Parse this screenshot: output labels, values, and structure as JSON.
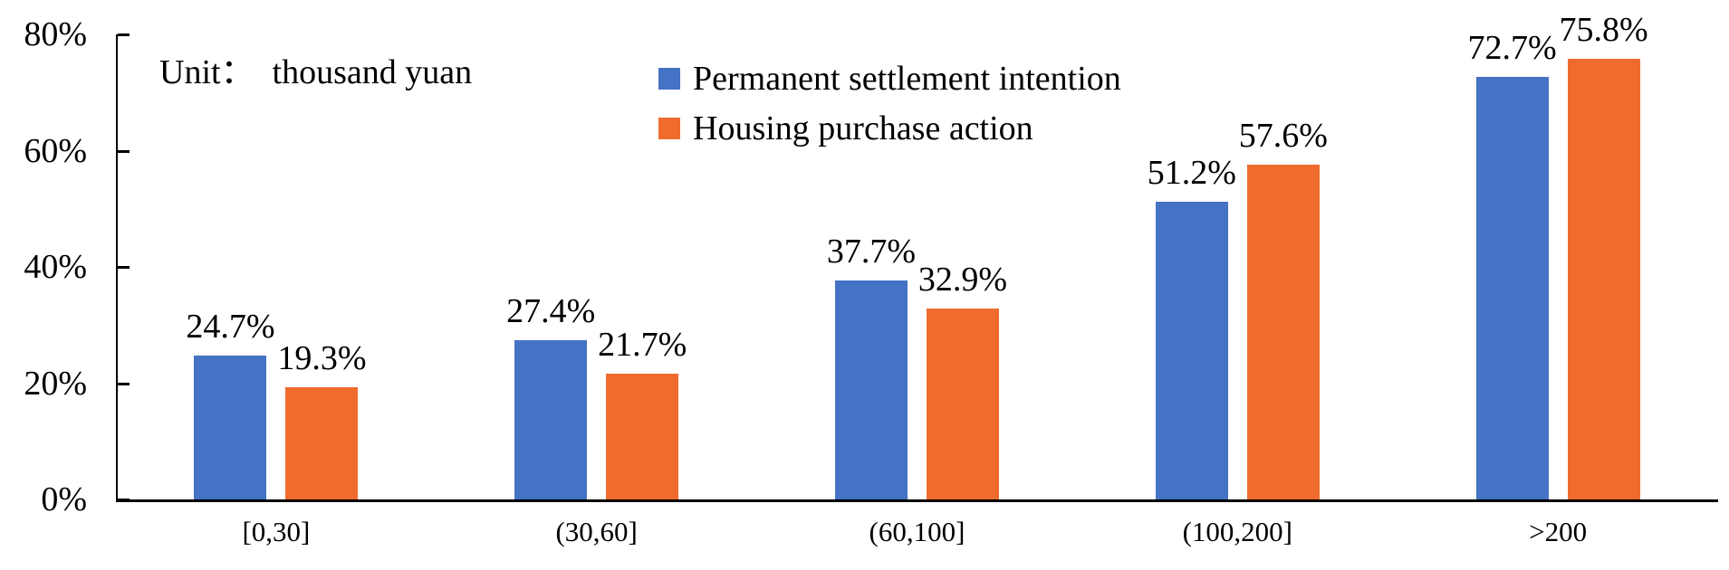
{
  "chart_data": {
    "type": "bar",
    "unit": "Unit：  thousand yuan",
    "categories": [
      "[0,30]",
      "(30,60]",
      "(60,100]",
      "(100,200]",
      ">200"
    ],
    "series": [
      {
        "name": "Permanent settlement intention",
        "color": "#4472C4",
        "values": [
          24.7,
          27.4,
          37.7,
          51.2,
          72.7
        ]
      },
      {
        "name": "Housing purchase action",
        "color": "#EF6C2E",
        "values": [
          19.3,
          21.7,
          32.9,
          57.6,
          75.8
        ]
      }
    ],
    "value_suffix": "%",
    "data_labels": [
      [
        "24.7%",
        "27.4%",
        "37.7%",
        "51.2%",
        "72.7%"
      ],
      [
        "19.3%",
        "21.7%",
        "32.9%",
        "57.6%",
        "75.8%"
      ]
    ],
    "ylim": [
      0,
      80
    ],
    "yticks": [
      "0%",
      "20%",
      "40%",
      "60%",
      "80%"
    ],
    "xlabel": "",
    "ylabel": "",
    "grid": false,
    "legend_position": "top-center",
    "axis_color": "#000000"
  }
}
